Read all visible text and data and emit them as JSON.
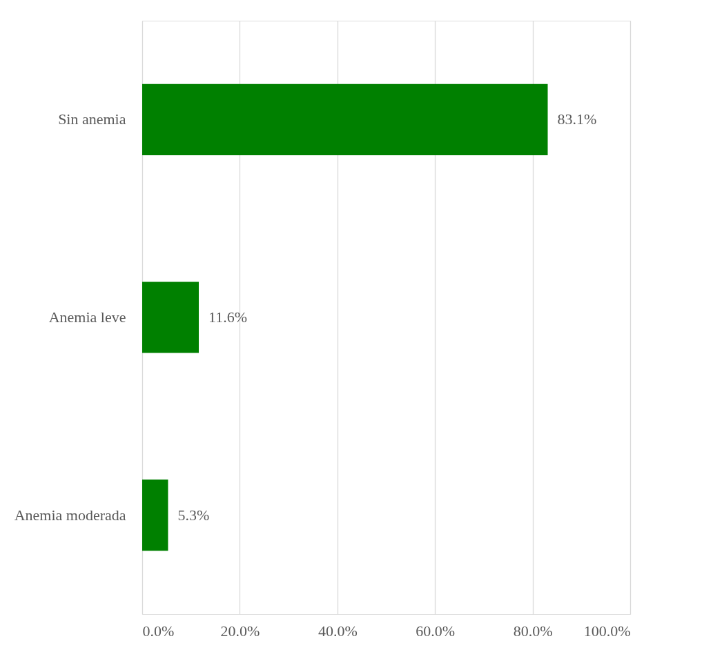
{
  "chart_data": {
    "type": "bar",
    "orientation": "horizontal",
    "categories": [
      "Sin anemia",
      "Anemia leve",
      "Anemia moderada"
    ],
    "values": [
      83.1,
      11.6,
      5.3
    ],
    "value_labels": [
      "83.1%",
      "11.6%",
      "5.3%"
    ],
    "color": "#008000",
    "xlim": [
      0,
      100
    ],
    "xticks": [
      {
        "value": 0,
        "label": "0.0%"
      },
      {
        "value": 20,
        "label": "20.0%"
      },
      {
        "value": 40,
        "label": "40.0%"
      },
      {
        "value": 60,
        "label": "60.0%"
      },
      {
        "value": 80,
        "label": "80.0%"
      },
      {
        "value": 100,
        "label": "100.0%"
      }
    ],
    "grid": "x"
  }
}
